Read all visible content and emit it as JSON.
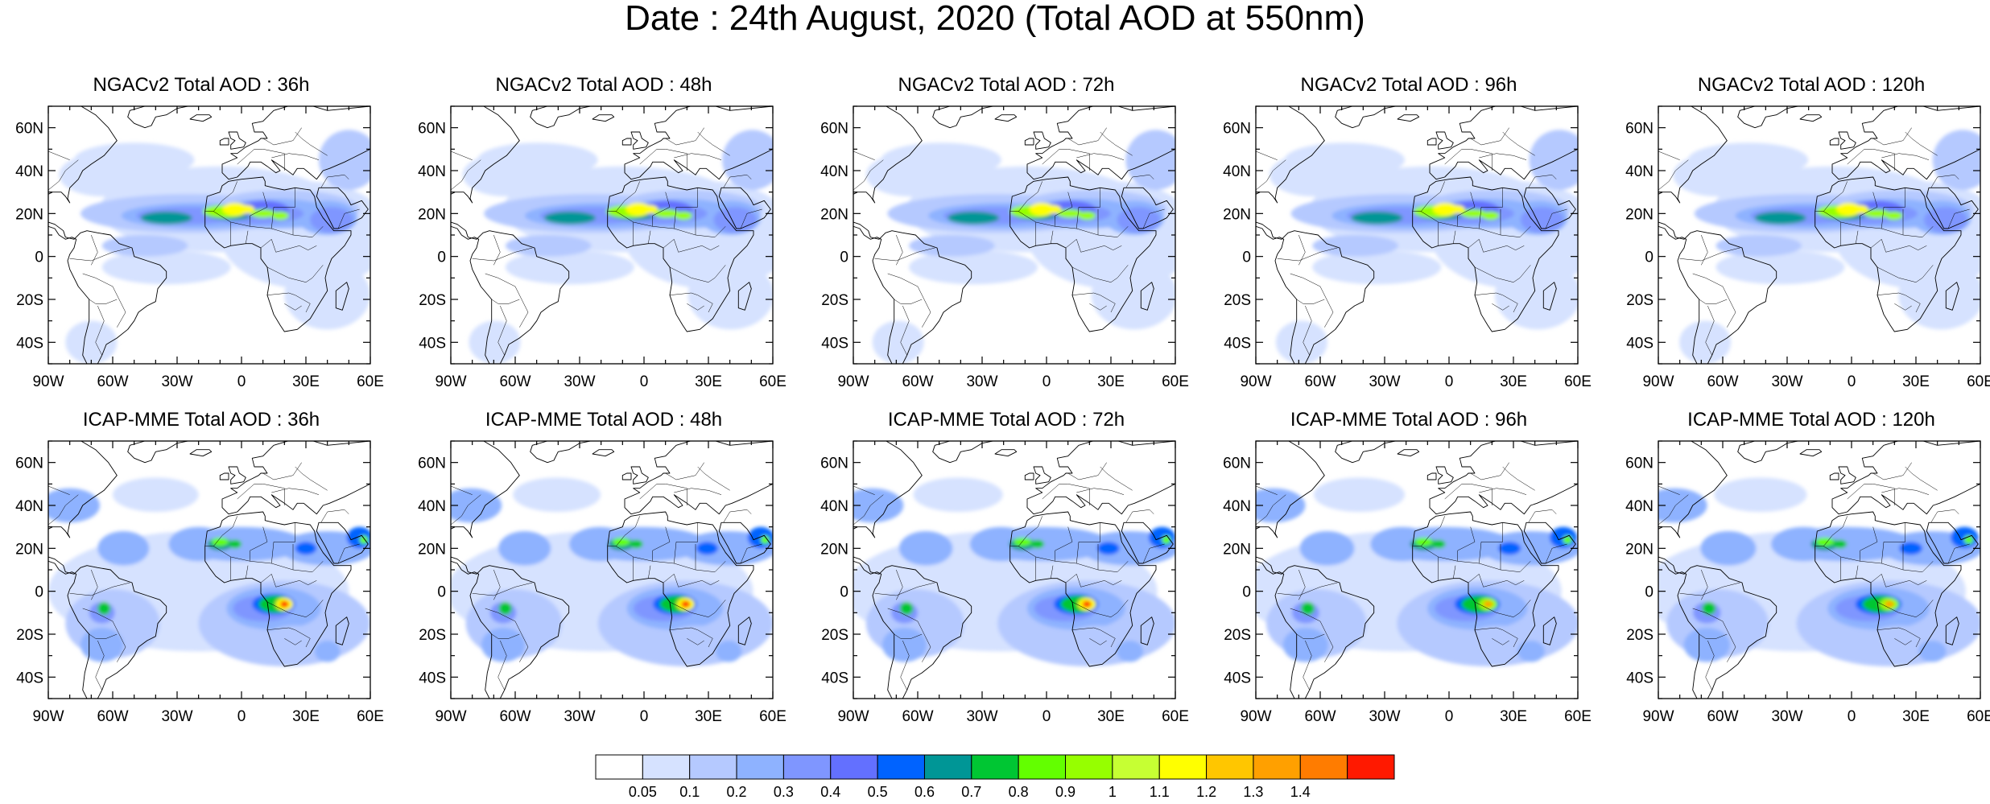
{
  "figure": {
    "title": "Date : 24th August, 2020 (Total AOD at 550nm)"
  },
  "axes": {
    "lon_ticks": [
      "90W",
      "60W",
      "30W",
      "0",
      "30E",
      "60E"
    ],
    "lon_values": [
      -90,
      -60,
      -30,
      0,
      30,
      60
    ],
    "lat_ticks": [
      "60N",
      "40N",
      "20N",
      "0",
      "20S",
      "40S"
    ],
    "lat_values": [
      60,
      40,
      20,
      0,
      -20,
      -40
    ],
    "lon_range": [
      -90,
      60
    ],
    "lat_range": [
      -50,
      70
    ]
  },
  "panels": [
    {
      "title": "NGACv2 Total AOD : 36h",
      "model": "NGACv2",
      "lead": "36h"
    },
    {
      "title": "NGACv2 Total AOD : 48h",
      "model": "NGACv2",
      "lead": "48h"
    },
    {
      "title": "NGACv2 Total AOD : 72h",
      "model": "NGACv2",
      "lead": "72h"
    },
    {
      "title": "NGACv2 Total AOD : 96h",
      "model": "NGACv2",
      "lead": "96h"
    },
    {
      "title": "NGACv2 Total AOD : 120h",
      "model": "NGACv2",
      "lead": "120h"
    },
    {
      "title": "ICAP-MME Total AOD : 36h",
      "model": "ICAP-MME",
      "lead": "36h"
    },
    {
      "title": "ICAP-MME Total AOD : 48h",
      "model": "ICAP-MME",
      "lead": "48h"
    },
    {
      "title": "ICAP-MME Total AOD : 72h",
      "model": "ICAP-MME",
      "lead": "72h"
    },
    {
      "title": "ICAP-MME Total AOD : 96h",
      "model": "ICAP-MME",
      "lead": "96h"
    },
    {
      "title": "ICAP-MME Total AOD : 120h",
      "model": "ICAP-MME",
      "lead": "120h"
    }
  ],
  "colorbar": {
    "labels": [
      "0.05",
      "0.1",
      "0.2",
      "0.3",
      "0.4",
      "0.5",
      "0.6",
      "0.7",
      "0.8",
      "0.9",
      "1",
      "1.1",
      "1.2",
      "1.3",
      "1.4"
    ],
    "colors": [
      "#ffffff",
      "#d6e2ff",
      "#b5c9ff",
      "#8eb2ff",
      "#7f96ff",
      "#6370ff",
      "#0063ff",
      "#009696",
      "#00c633",
      "#63ff00",
      "#96ff00",
      "#c6ff33",
      "#ffff00",
      "#ffc600",
      "#ffa000",
      "#ff7c00",
      "#ff1900"
    ]
  }
}
